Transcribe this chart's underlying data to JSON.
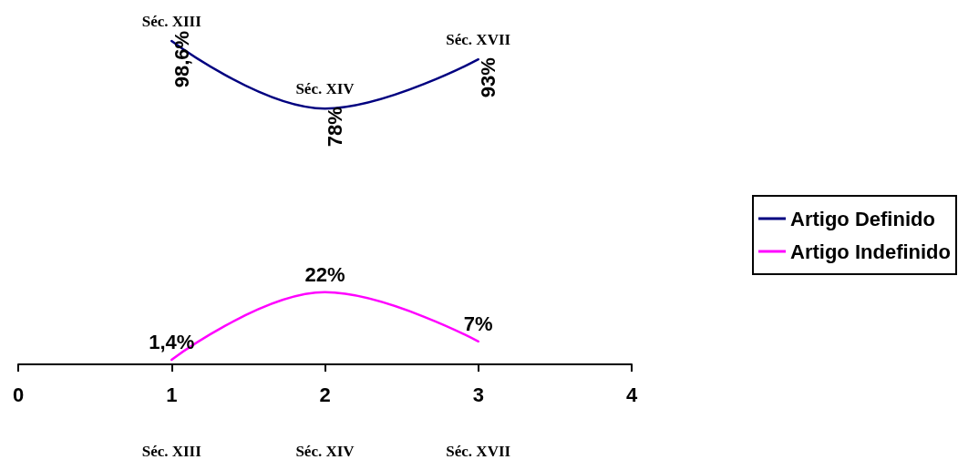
{
  "chart_data": {
    "type": "line",
    "x": [
      1,
      2,
      3
    ],
    "xlim": [
      0,
      4
    ],
    "xticks": [
      0,
      1,
      2,
      3,
      4
    ],
    "tick_labels": "x",
    "grid": false,
    "legend": "right",
    "marker": "none",
    "line_style": "solid",
    "series": [
      {
        "name": "Artigo Definido",
        "color": "#000080",
        "values": [
          98.6,
          78,
          93
        ],
        "value_labels": [
          "98,6%",
          "78%",
          "93%"
        ]
      },
      {
        "name": "Artigo Indefinido",
        "color": "#ff00ff",
        "values": [
          1.4,
          22,
          7
        ],
        "value_labels": [
          "1,4%",
          "22%",
          "7%"
        ]
      }
    ],
    "annotations": [
      {
        "text": "Séc. XIII",
        "x": 1,
        "y": 98.6
      },
      {
        "text": "Séc. XIV",
        "x": 2,
        "y": 78
      },
      {
        "text": "Séc. XVII",
        "x": 3,
        "y": 93
      },
      "Séc. XIII",
      "Séc. XIV",
      "Séc. XVII"
    ]
  }
}
